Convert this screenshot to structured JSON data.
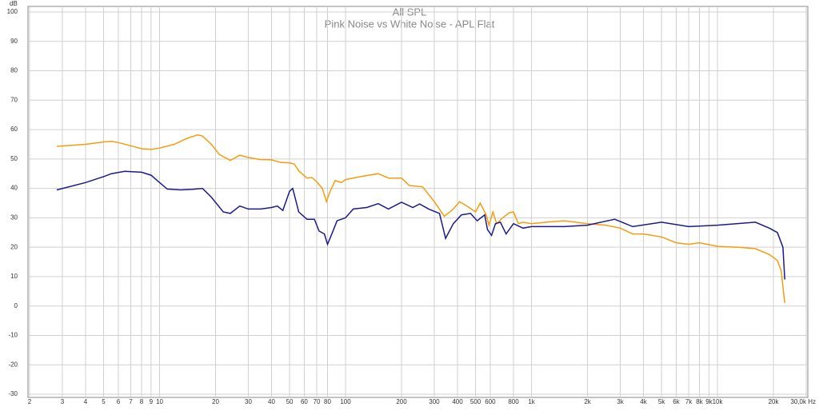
{
  "chart_data": {
    "type": "line",
    "title": "All SPL",
    "subtitle": "Pink Noise vs White Noise - APL Flat",
    "y_label": "dB",
    "log_x": true,
    "grid": true,
    "xlim": [
      2,
      30000
    ],
    "ylim": [
      -30,
      100
    ],
    "xticks": [
      2,
      3,
      4,
      5,
      6,
      7,
      8,
      9,
      10,
      20,
      30,
      40,
      50,
      60,
      70,
      80,
      100,
      200,
      300,
      400,
      500,
      600,
      800,
      {
        "value": 1000,
        "label": "1k"
      },
      {
        "value": 2000,
        "label": "2k"
      },
      {
        "value": 3000,
        "label": "3k"
      },
      {
        "value": 4000,
        "label": "4k"
      },
      {
        "value": 5000,
        "label": "5k"
      },
      {
        "value": 6000,
        "label": "6k"
      },
      {
        "value": 7000,
        "label": "7k"
      },
      {
        "value": 8000,
        "label": "8k"
      },
      {
        "value": 9000,
        "label": "9k"
      },
      {
        "value": 10000,
        "label": "10k"
      },
      {
        "value": 20000,
        "label": "20k"
      },
      {
        "value": 30000,
        "label": "30,0k Hz"
      }
    ],
    "yticks": [
      100,
      90,
      80,
      70,
      60,
      50,
      40,
      30,
      20,
      10,
      0,
      -10,
      -20,
      -30
    ],
    "series": [
      {
        "name": "Pink Noise",
        "color": "#f59d0f",
        "x": [
          2.8,
          4,
          5,
          5.5,
          6,
          7,
          8,
          9,
          10,
          12,
          14,
          16,
          17,
          19,
          21,
          24,
          27,
          30,
          35,
          40,
          45,
          50,
          53,
          56,
          62,
          66,
          70,
          75,
          79,
          82,
          88,
          95,
          100,
          120,
          150,
          170,
          200,
          220,
          260,
          300,
          340,
          380,
          410,
          450,
          500,
          530,
          570,
          590,
          620,
          650,
          700,
          760,
          800,
          850,
          900,
          1000,
          1200,
          1500,
          2000,
          2500,
          3000,
          3500,
          4000,
          5000,
          6000,
          7000,
          8000,
          10000,
          13000,
          16000,
          19000,
          21000,
          22000,
          23000
        ],
        "values": [
          54.3,
          55,
          55.8,
          56,
          55.6,
          54.5,
          53.5,
          53.3,
          53.7,
          55,
          57,
          58.2,
          57.8,
          55,
          51.5,
          49.5,
          51.3,
          50.5,
          49.8,
          49.7,
          48.8,
          48.7,
          48.3,
          46,
          43.5,
          43.7,
          42.2,
          40,
          35.5,
          38.5,
          42.7,
          42,
          43,
          44,
          45,
          43.5,
          43.5,
          41,
          40.5,
          35.5,
          30.5,
          33,
          35.5,
          34,
          32,
          35,
          31,
          27.5,
          32,
          28,
          30,
          31.7,
          32,
          28,
          28.5,
          28,
          28.5,
          29,
          28,
          27.5,
          26.5,
          24.5,
          24.5,
          23.5,
          21.5,
          21,
          21.5,
          20.3,
          20,
          19.5,
          17.5,
          15.5,
          12,
          1
        ]
      },
      {
        "name": "White Noise",
        "color": "#1a1a8c",
        "x": [
          2.8,
          4,
          5,
          5.5,
          6.5,
          8,
          9,
          10,
          11,
          13,
          15,
          17,
          19,
          22,
          24,
          27,
          30,
          35,
          40,
          43,
          46,
          50,
          52,
          56,
          62,
          68,
          72,
          77,
          80,
          85,
          90,
          100,
          110,
          130,
          150,
          170,
          200,
          230,
          250,
          280,
          320,
          345,
          380,
          420,
          470,
          510,
          560,
          580,
          610,
          640,
          680,
          730,
          800,
          900,
          1000,
          1500,
          2000,
          2800,
          3500,
          5000,
          7000,
          10000,
          16000,
          19000,
          21000,
          22500,
          23000
        ],
        "values": [
          39.5,
          42,
          44,
          45,
          45.8,
          45.5,
          44.5,
          42,
          39.8,
          39.5,
          39.7,
          40,
          37,
          32,
          31.5,
          34,
          33,
          33,
          33.5,
          34,
          32.5,
          39,
          40,
          32,
          29.5,
          29.5,
          25.5,
          24.5,
          21,
          25,
          29,
          30,
          33,
          33.5,
          34.8,
          33,
          35.3,
          33.5,
          34.7,
          33,
          31.5,
          23,
          28,
          31,
          31.5,
          29,
          31,
          26,
          24,
          28,
          28.5,
          24.5,
          28,
          26.5,
          27,
          27,
          27.5,
          29.5,
          27,
          28.5,
          27,
          27.5,
          28.5,
          26.5,
          25,
          20,
          9
        ]
      }
    ]
  }
}
